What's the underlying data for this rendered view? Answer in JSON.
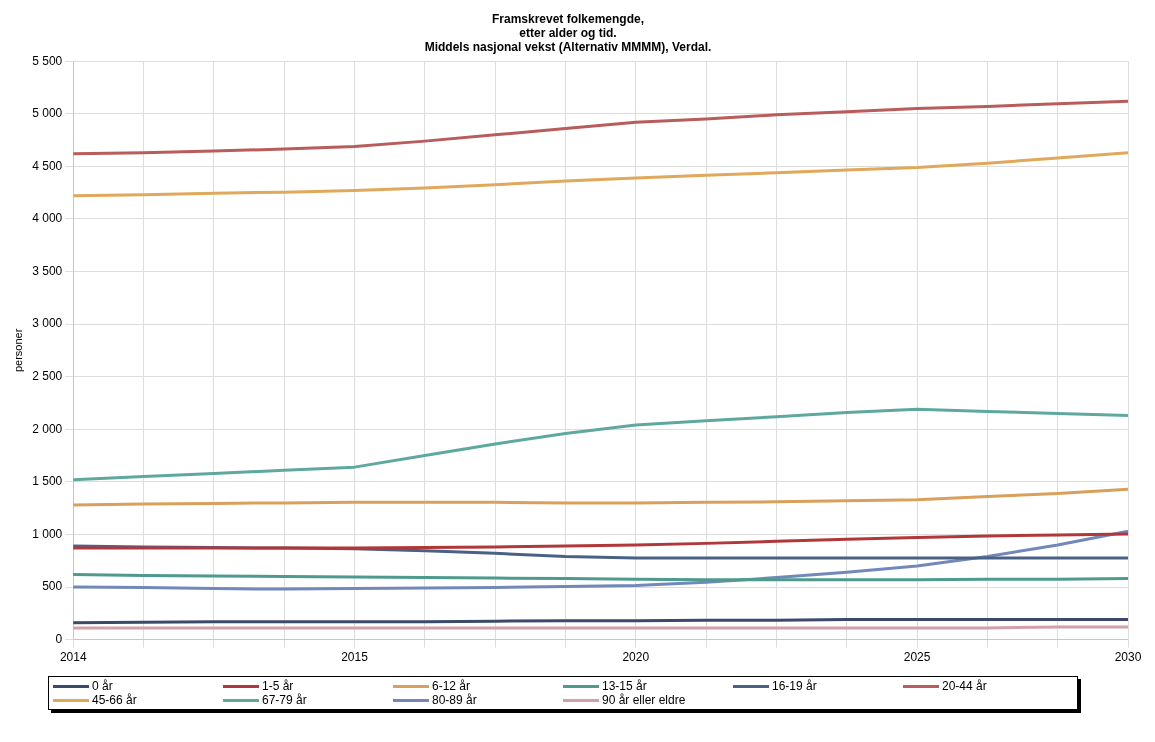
{
  "chart_data": {
    "type": "line",
    "title": "Framskrevet folkemengde,\netter alder og tid.\nMiddels nasjonal vekst (Alternativ MMMM), Verdal.",
    "ylabel": "personer",
    "categories": [
      "2014",
      null,
      null,
      null,
      "2015",
      null,
      null,
      null,
      "2020",
      null,
      null,
      null,
      "2025",
      null,
      null,
      "2030"
    ],
    "series": [
      {
        "name": "0 år",
        "color": "#3b4a6b",
        "values": [
          160,
          165,
          170,
          170,
          170,
          170,
          175,
          180,
          180,
          185,
          185,
          190,
          190,
          190,
          190,
          190
        ]
      },
      {
        "name": "1-5 år",
        "color": "#b0383a",
        "values": [
          870,
          870,
          870,
          870,
          870,
          875,
          880,
          890,
          900,
          915,
          935,
          955,
          970,
          985,
          995,
          1005
        ]
      },
      {
        "name": "6-12 år",
        "color": "#d9a05b",
        "values": [
          1280,
          1290,
          1295,
          1300,
          1305,
          1305,
          1305,
          1300,
          1300,
          1305,
          1310,
          1320,
          1330,
          1360,
          1390,
          1430
        ]
      },
      {
        "name": "13-15 år",
        "color": "#4e9a8e",
        "values": [
          620,
          610,
          605,
          600,
          595,
          590,
          585,
          580,
          575,
          570,
          570,
          570,
          570,
          575,
          575,
          580
        ]
      },
      {
        "name": "16-19 år",
        "color": "#4a6186",
        "values": [
          890,
          880,
          875,
          870,
          865,
          845,
          820,
          790,
          775,
          775,
          775,
          775,
          775,
          775,
          775,
          775
        ]
      },
      {
        "name": "20-44 år",
        "color": "#b85c5c",
        "values": [
          4620,
          4630,
          4645,
          4665,
          4690,
          4740,
          4800,
          4860,
          4920,
          4950,
          4990,
          5020,
          5050,
          5070,
          5095,
          5120
        ]
      },
      {
        "name": "45-66 år",
        "color": "#e0a85a",
        "values": [
          4220,
          4230,
          4245,
          4255,
          4270,
          4295,
          4325,
          4360,
          4390,
          4415,
          4440,
          4465,
          4490,
          4530,
          4580,
          4630
        ]
      },
      {
        "name": "67-79 år",
        "color": "#5fa8a0",
        "values": [
          1520,
          1550,
          1580,
          1610,
          1640,
          1750,
          1860,
          1960,
          2040,
          2080,
          2120,
          2160,
          2190,
          2170,
          2150,
          2130
        ]
      },
      {
        "name": "80-89 år",
        "color": "#7188b8",
        "values": [
          500,
          495,
          485,
          480,
          485,
          490,
          495,
          505,
          515,
          545,
          590,
          640,
          700,
          790,
          900,
          1030
        ]
      },
      {
        "name": "90 år eller eldre",
        "color": "#d4a0a8",
        "values": [
          110,
          110,
          110,
          110,
          110,
          110,
          110,
          110,
          110,
          110,
          110,
          110,
          110,
          110,
          120,
          120
        ]
      }
    ],
    "ylim": [
      0,
      5500
    ],
    "yticks": [
      0,
      500,
      {
        "value": 1000,
        "label": "1 000"
      },
      {
        "value": 1500,
        "label": "1 500"
      },
      {
        "value": 2000,
        "label": "2 000"
      },
      {
        "value": 2500,
        "label": "2 500"
      },
      {
        "value": 3000,
        "label": "3 000"
      },
      {
        "value": 3500,
        "label": "3 500"
      },
      {
        "value": 4000,
        "label": "4 000"
      },
      {
        "value": 4500,
        "label": "4 500"
      },
      {
        "value": 5000,
        "label": "5 000"
      },
      {
        "value": 5500,
        "label": "5 500"
      }
    ],
    "grid": true,
    "legend": "bottom",
    "marker": "none",
    "line_style": "solid"
  }
}
